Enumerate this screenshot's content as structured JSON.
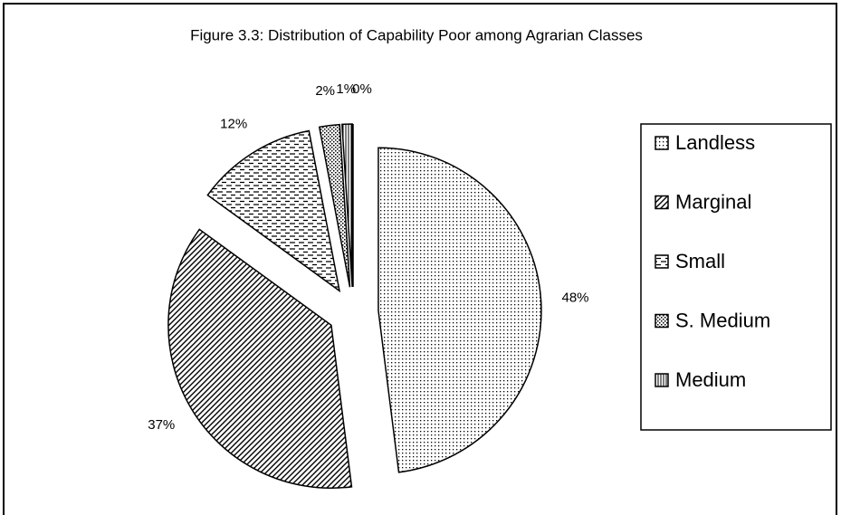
{
  "chart_data": {
    "type": "pie",
    "title": "Figure 3.3: Distribution of Capability Poor among Agrarian Classes",
    "categories": [
      "Landless",
      "Marginal",
      "Small",
      "S. Medium",
      "Medium",
      null
    ],
    "values": [
      48,
      37,
      12,
      2,
      1,
      0
    ],
    "value_labels": [
      "48%",
      "37%",
      "12%",
      "2%",
      "1%",
      "0%"
    ],
    "legend": "right"
  }
}
